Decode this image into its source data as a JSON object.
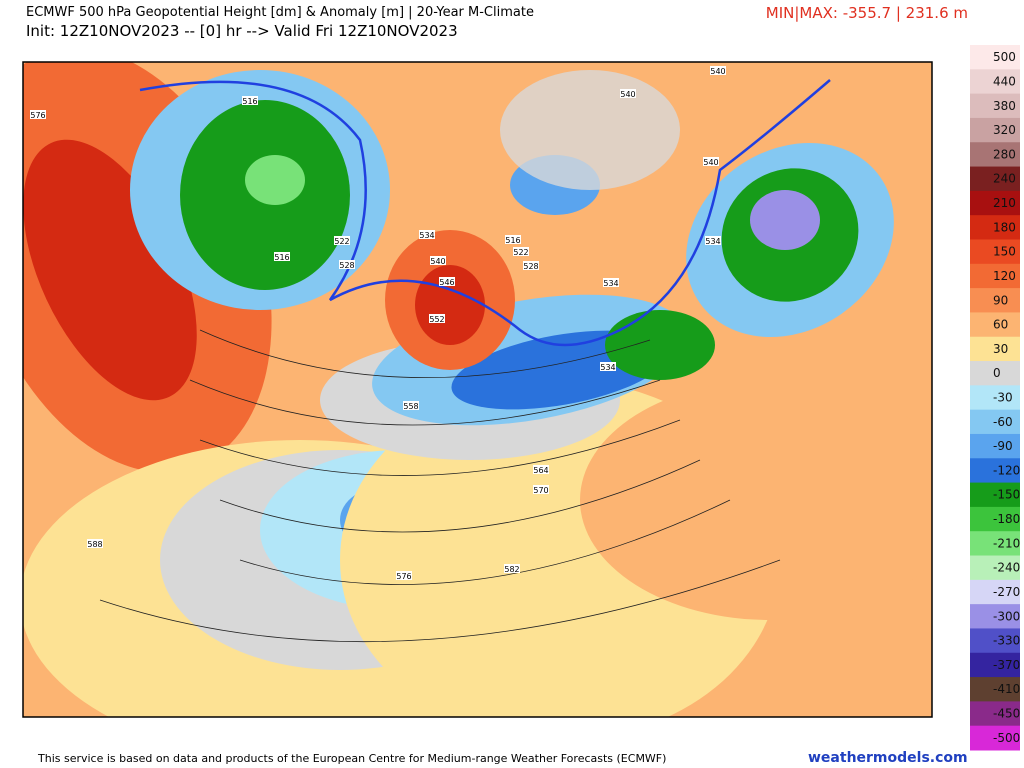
{
  "header": {
    "title": "ECMWF 500 hPa Geopotential Height [dm] & Anomaly [m] | 20-Year M-Climate",
    "init": "Init: 12Z10NOV2023 -- [0] hr --> Valid Fri 12Z10NOV2023",
    "minmax": "MIN|MAX: -355.7 | 231.6 m"
  },
  "colorbar": {
    "labels": [
      500,
      440,
      380,
      320,
      280,
      240,
      210,
      180,
      150,
      120,
      90,
      60,
      30,
      0,
      -30,
      -60,
      -90,
      -120,
      -150,
      -180,
      -210,
      -240,
      -270,
      -300,
      -330,
      -370,
      -410,
      -450,
      -500
    ],
    "colors": [
      "#fde9e9",
      "#ecd3d3",
      "#dcbcbc",
      "#c9a2a2",
      "#a87474",
      "#7a2020",
      "#a81010",
      "#d42a12",
      "#ea4a22",
      "#f26a34",
      "#f88e52",
      "#fcb472",
      "#fde294",
      "#d8d8d8",
      "#b2e6f8",
      "#84c8f2",
      "#5aa4ee",
      "#2a72dc",
      "#169c1a",
      "#3cc43c",
      "#78e278",
      "#b8f0b8",
      "#d6d6f6",
      "#9a90e6",
      "#5050c8",
      "#3424a0",
      "#5e4030",
      "#8a2a8a",
      "#d828d8"
    ]
  },
  "map": {
    "contour_labels": [
      "576",
      "516",
      "516",
      "522",
      "528",
      "534",
      "540",
      "546",
      "552",
      "516",
      "522",
      "528",
      "540",
      "540",
      "540",
      "534",
      "534",
      "534",
      "558",
      "564",
      "570",
      "576",
      "582",
      "588"
    ]
  },
  "footer": {
    "text": "This service is based on data and products of the European Centre for Medium-range Weather Forecasts (ECMWF)",
    "brand": "weathermodels.com"
  }
}
